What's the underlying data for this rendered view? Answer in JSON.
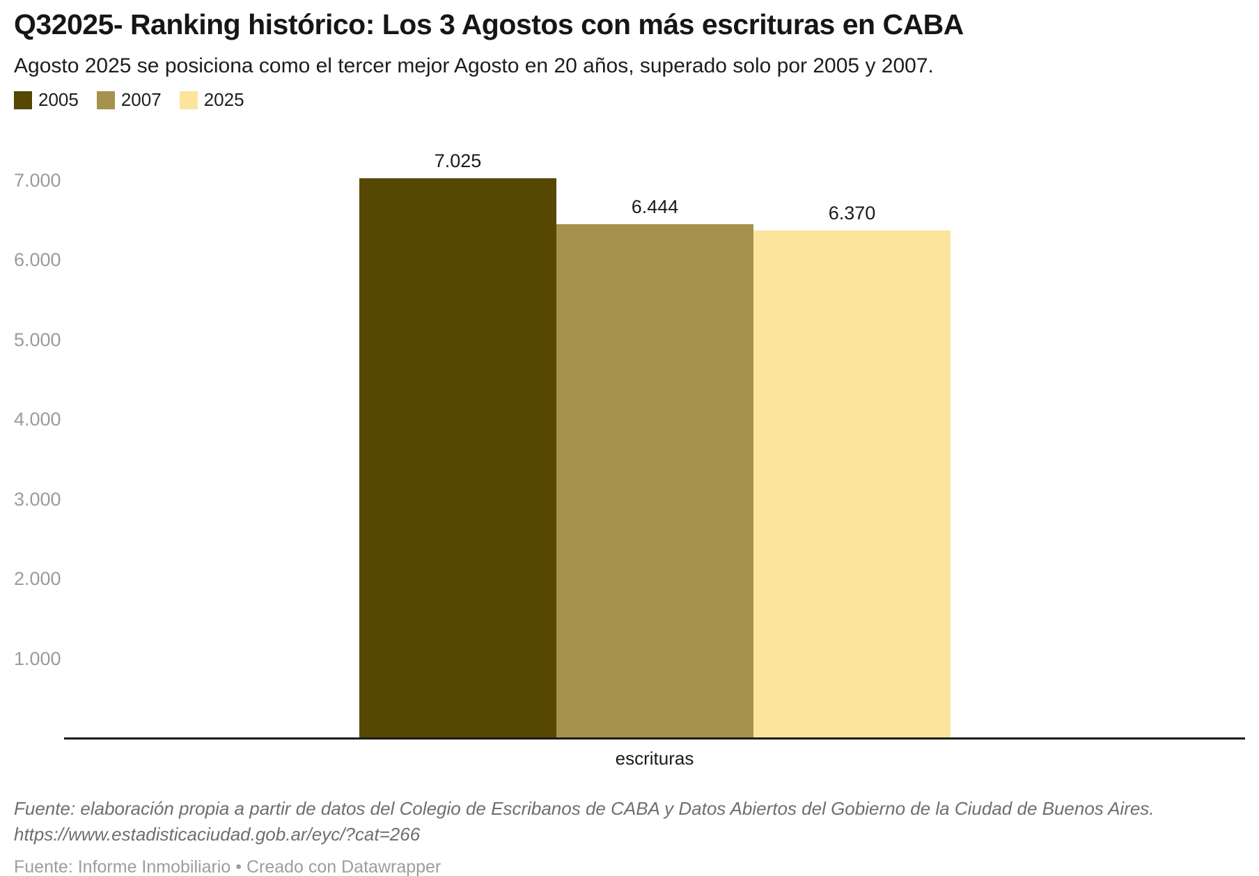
{
  "header": {
    "title": "Q32025- Ranking histórico: Los 3 Agostos con más escrituras en CABA",
    "subtitle": "Agosto 2025 se posiciona como el tercer mejor Agosto en 20 años, superado solo por 2005 y 2007."
  },
  "chart_data": {
    "type": "bar",
    "title": "Q32025- Ranking histórico: Los 3 Agostos con más escrituras en CABA",
    "subtitle": "Agosto 2025 se posiciona como el tercer mejor Agosto en 20 años, superado solo por 2005 y 2007.",
    "categories": [
      "escrituras"
    ],
    "series": [
      {
        "name": "2005",
        "values": [
          7025
        ],
        "label": "7.025",
        "color": "#564703"
      },
      {
        "name": "2007",
        "values": [
          6444
        ],
        "label": "6.444",
        "color": "#a6924c"
      },
      {
        "name": "2025",
        "values": [
          6370
        ],
        "label": "6.370",
        "color": "#fde49d"
      }
    ],
    "xlabel": "escrituras",
    "ylabel": "",
    "ylim": [
      0,
      7400
    ],
    "yticks": [
      {
        "value": 1000,
        "label": "1.000"
      },
      {
        "value": 2000,
        "label": "2.000"
      },
      {
        "value": 3000,
        "label": "3.000"
      },
      {
        "value": 4000,
        "label": "4.000"
      },
      {
        "value": 5000,
        "label": "5.000"
      },
      {
        "value": 6000,
        "label": "6.000"
      },
      {
        "value": 7000,
        "label": "7.000"
      }
    ],
    "grid": false,
    "legend_position": "top-left"
  },
  "footer": {
    "note_line1": "Fuente: elaboración propia a partir de datos del Colegio de Escribanos de CABA y Datos Abiertos del Gobierno de la Ciudad de Buenos Aires.",
    "note_line2": "https://www.estadisticaciudad.gob.ar/eyc/?cat=266",
    "byline_prefix": "Fuente: Informe Inmobiliario",
    "separator": "•",
    "datawrapper_credit": "Creado con Datawrapper"
  },
  "colors": {
    "background": "#ffffff",
    "axis_line": "#1a1a1a",
    "tick_label": "#9b9b9b",
    "text": "#1d1d1d",
    "note": "#6e6e6e",
    "byline": "#9d9d9d"
  }
}
